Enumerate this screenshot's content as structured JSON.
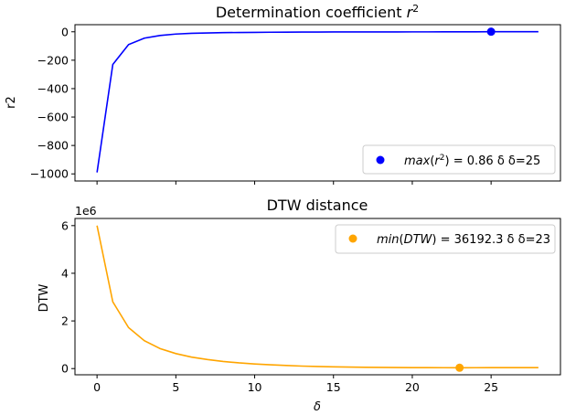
{
  "figure_title": "",
  "chart_data": [
    {
      "type": "line",
      "title_main": "Determination coefficient ",
      "title_math": "r",
      "title_sup": "2",
      "xlabel": "",
      "ylabel": "r2",
      "xlim": [
        -1.4,
        29.4
      ],
      "ylim": [
        -1050,
        50
      ],
      "yticks": [
        0,
        -200,
        -400,
        -600,
        -800,
        -1000
      ],
      "ytick_labels": [
        "0",
        "−200",
        "−400",
        "−600",
        "−800",
        "−1000"
      ],
      "xticks": [
        0,
        5,
        10,
        15,
        20,
        25
      ],
      "show_xtick_labels": false,
      "grid": false,
      "series": [
        {
          "color": "#0000ff",
          "x": [
            0,
            1,
            2,
            3,
            4,
            5,
            6,
            7,
            8,
            9,
            10,
            11,
            12,
            13,
            14,
            15,
            16,
            17,
            18,
            19,
            20,
            21,
            22,
            23,
            24,
            25,
            26,
            27,
            28
          ],
          "y": [
            -990,
            -230,
            -90,
            -45,
            -26,
            -16,
            -11,
            -8,
            -6,
            -5,
            -4,
            -3,
            -2.5,
            -2,
            -1.6,
            -1.3,
            -1.1,
            -1,
            -0.9,
            -0.8,
            -0.7,
            -0.6,
            -0.5,
            -0.4,
            -0.3,
            0.86,
            0.8,
            0.75,
            0.7
          ]
        }
      ],
      "marker": {
        "x": 25,
        "y": 0.86,
        "color": "#0000ff"
      },
      "legend": {
        "position": "lower right",
        "label_fn": "max",
        "label_arg": "r",
        "label_sup": "2",
        "label_rest": " = 0.86 δ δ=25"
      }
    },
    {
      "type": "line",
      "title": "DTW distance",
      "xlabel": "δ",
      "ylabel": "DTW",
      "offset_text": "1e6",
      "xlim": [
        -1.4,
        29.4
      ],
      "ylim": [
        -0.26,
        6.3
      ],
      "yticks": [
        0,
        2,
        4,
        6
      ],
      "ytick_labels": [
        "0",
        "2",
        "4",
        "6"
      ],
      "xticks": [
        0,
        5,
        10,
        15,
        20,
        25
      ],
      "xtick_labels": [
        "0",
        "5",
        "10",
        "15",
        "20",
        "25"
      ],
      "grid": false,
      "series": [
        {
          "color": "#ffa500",
          "x": [
            0,
            1,
            2,
            3,
            4,
            5,
            6,
            7,
            8,
            9,
            10,
            11,
            12,
            13,
            14,
            15,
            16,
            17,
            18,
            19,
            20,
            21,
            22,
            23,
            24,
            25,
            26,
            27,
            28
          ],
          "y": [
            6.0,
            2.8,
            1.72,
            1.17,
            0.84,
            0.63,
            0.48,
            0.38,
            0.3,
            0.24,
            0.195,
            0.16,
            0.13,
            0.105,
            0.087,
            0.073,
            0.062,
            0.054,
            0.048,
            0.044,
            0.041,
            0.039,
            0.037,
            0.036,
            0.037,
            0.038,
            0.039,
            0.04,
            0.041
          ]
        }
      ],
      "marker": {
        "x": 23,
        "y": 0.036,
        "color": "#ffa500"
      },
      "legend": {
        "position": "upper right",
        "label_fn": "min",
        "label_arg": "DTW",
        "label_rest": " = 36192.3 δ δ=23"
      }
    }
  ]
}
